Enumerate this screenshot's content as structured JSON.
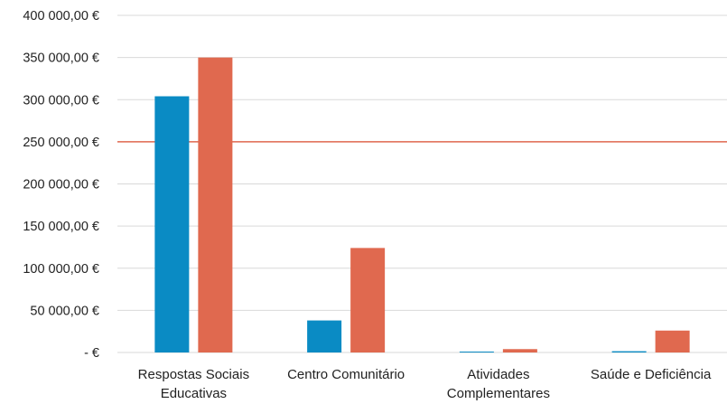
{
  "chart_data": {
    "type": "bar",
    "categories": [
      [
        "Respostas Sociais",
        "Educativas"
      ],
      [
        "Centro Comunitário"
      ],
      [
        "Atividades",
        "Complementares"
      ],
      [
        "Saúde e Deficiência"
      ]
    ],
    "series": [
      {
        "color": "#0a8bc4",
        "values": [
          304000,
          38000,
          1000,
          1500
        ]
      },
      {
        "color": "#e0694f",
        "values": [
          350000,
          124000,
          4000,
          26000
        ]
      }
    ],
    "reference_line": {
      "value": 250000,
      "color": "#e0694f"
    },
    "ylim": [
      0,
      400000
    ],
    "y_ticks": [
      {
        "value": 400000,
        "label": "400 000,00 €"
      },
      {
        "value": 350000,
        "label": "350 000,00 €"
      },
      {
        "value": 300000,
        "label": "300 000,00 €"
      },
      {
        "value": 250000,
        "label": "250 000,00 €"
      },
      {
        "value": 200000,
        "label": "200 000,00 €"
      },
      {
        "value": 150000,
        "label": "150 000,00 €"
      },
      {
        "value": 100000,
        "label": "100 000,00 €"
      },
      {
        "value": 50000,
        "label": "50 000,00 €"
      },
      {
        "value": 0,
        "label": "-  €"
      }
    ],
    "grid": true,
    "legend": "none",
    "title": "",
    "xlabel": "",
    "ylabel": ""
  }
}
